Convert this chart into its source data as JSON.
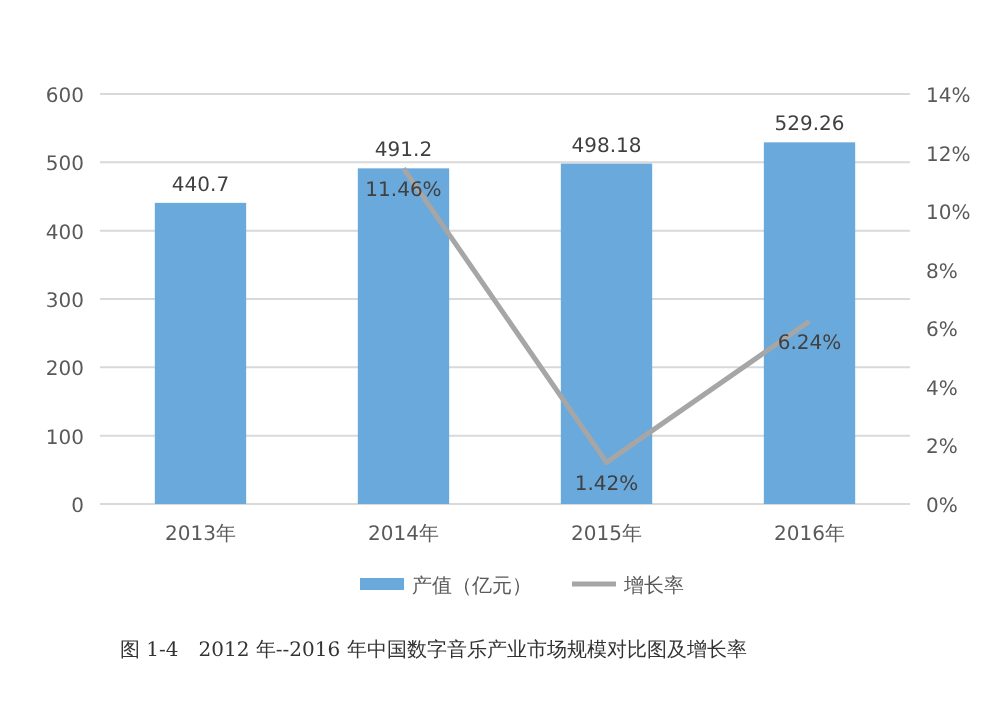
{
  "chart_data": {
    "type": "bar",
    "categories": [
      "2013年",
      "2014年",
      "2015年",
      "2016年"
    ],
    "series": [
      {
        "name": "产值（亿元）",
        "color": "#6aa9dc",
        "values": [
          440.7,
          491.2,
          498.18,
          529.26
        ],
        "value_labels": [
          "440.7",
          "491.2",
          "498.18",
          "529.26"
        ]
      },
      {
        "name": "增长率",
        "type": "line",
        "axis": "y2",
        "color": "#a6a6a6",
        "values": [
          null,
          11.46,
          1.42,
          6.24
        ],
        "value_labels": [
          null,
          "11.46%",
          "1.42%",
          "6.24%"
        ]
      }
    ],
    "ylim": [
      0,
      600
    ],
    "yticks": [
      0,
      100,
      200,
      300,
      400,
      500,
      600
    ],
    "y2lim": [
      0,
      14
    ],
    "y2ticks": [
      {
        "value": 0,
        "label": "0%"
      },
      {
        "value": 2,
        "label": "2%"
      },
      {
        "value": 4,
        "label": "4%"
      },
      {
        "value": 6,
        "label": "6%"
      },
      {
        "value": 8,
        "label": "8%"
      },
      {
        "value": 10,
        "label": "10%"
      },
      {
        "value": 12,
        "label": "12%"
      },
      {
        "value": 14,
        "label": "14%"
      }
    ],
    "grid": "y",
    "legend": "bottom",
    "marker": "none",
    "line_style": "solid",
    "annotations": [
      "图 1-4　2012 年--2016 年中国数字音乐产业市场规模对比图及增长率"
    ]
  }
}
